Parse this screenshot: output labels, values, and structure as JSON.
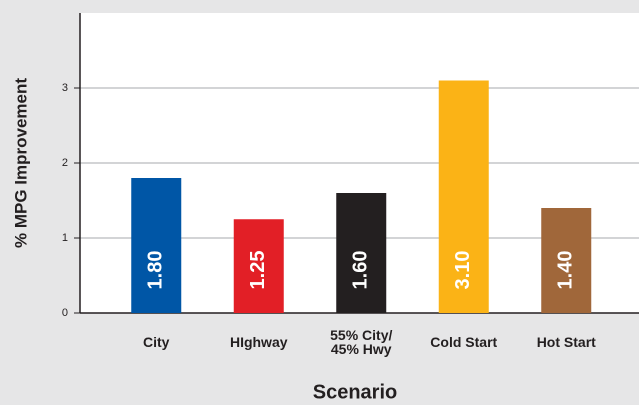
{
  "chart_data": {
    "type": "bar",
    "xlabel": "Scenario",
    "ylabel": "% MPG Improvement",
    "categories": [
      "City",
      "HIghway",
      "55% City/\n45% Hwy",
      "Cold Start",
      "Hot Start"
    ],
    "values": [
      1.8,
      1.25,
      1.6,
      3.1,
      1.4
    ],
    "value_labels": [
      "1.80",
      "1.25",
      "1.60",
      "3.10",
      "1.40"
    ],
    "colors": [
      "#0056a6",
      "#e21f26",
      "#231f20",
      "#fbb316",
      "#a0673a"
    ],
    "ylim": [
      0,
      4
    ],
    "yticks": [
      0,
      1,
      2,
      3
    ],
    "grid": true
  }
}
